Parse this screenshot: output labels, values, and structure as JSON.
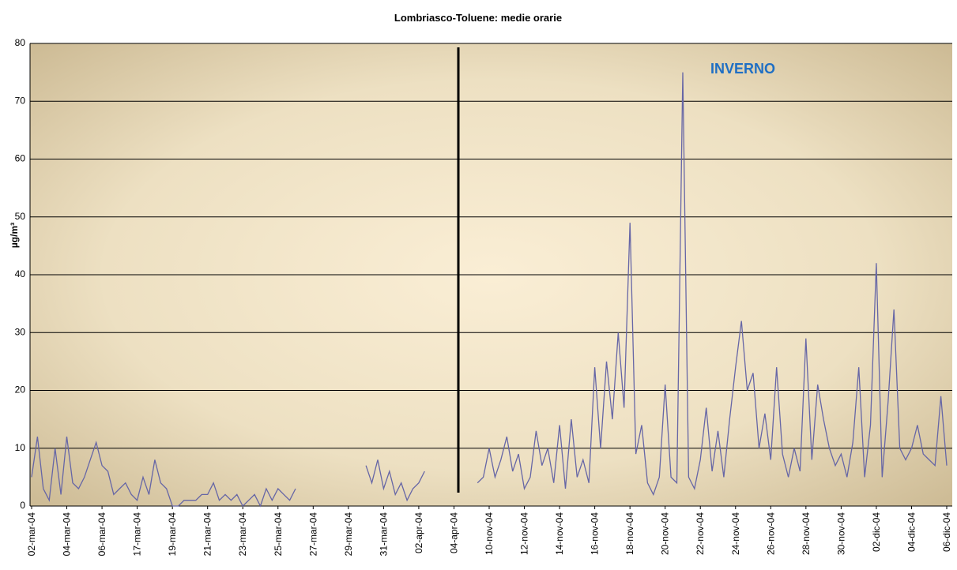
{
  "chart_data": {
    "type": "line",
    "title": "Lombriasco-Toluene: medie orarie",
    "y_label": "µg/m³",
    "annotation": "INVERNO",
    "categories": [
      "02-mar-04",
      null,
      null,
      null,
      null,
      null,
      "04-mar-04",
      null,
      null,
      null,
      null,
      null,
      "06-mar-04",
      null,
      null,
      null,
      null,
      null,
      "17-mar-04",
      null,
      null,
      null,
      null,
      null,
      "19-mar-04",
      null,
      null,
      null,
      null,
      null,
      "21-mar-04",
      null,
      null,
      null,
      null,
      null,
      "23-mar-04",
      null,
      null,
      null,
      null,
      null,
      "25-mar-04",
      null,
      null,
      null,
      null,
      null,
      "27-mar-04",
      null,
      null,
      null,
      null,
      null,
      "29-mar-04",
      null,
      null,
      null,
      null,
      null,
      "31-mar-04",
      null,
      null,
      null,
      null,
      null,
      "02-apr-04",
      null,
      null,
      null,
      null,
      null,
      "04-apr-04",
      null,
      null,
      null,
      null,
      null,
      "10-nov-04",
      null,
      null,
      null,
      null,
      null,
      "12-nov-04",
      null,
      null,
      null,
      null,
      null,
      "14-nov-04",
      null,
      null,
      null,
      null,
      null,
      "16-nov-04",
      null,
      null,
      null,
      null,
      null,
      "18-nov-04",
      null,
      null,
      null,
      null,
      null,
      "20-nov-04",
      null,
      null,
      null,
      null,
      null,
      "22-nov-04",
      null,
      null,
      null,
      null,
      null,
      "24-nov-04",
      null,
      null,
      null,
      null,
      null,
      "26-nov-04",
      null,
      null,
      null,
      null,
      null,
      "28-nov-04",
      null,
      null,
      null,
      null,
      null,
      "30-nov-04",
      null,
      null,
      null,
      null,
      null,
      "02-dic-04",
      null,
      null,
      null,
      null,
      null,
      "04-dic-04",
      null,
      null,
      null,
      null,
      null,
      "06-dic-04"
    ],
    "series": [
      {
        "name": "Toluene",
        "color": "#6666a6",
        "values": [
          5,
          12,
          3,
          1,
          10,
          2,
          12,
          4,
          3,
          5,
          8,
          11,
          7,
          6,
          2,
          3,
          4,
          2,
          1,
          5,
          2,
          8,
          4,
          3,
          0,
          0,
          1,
          1,
          1,
          2,
          2,
          4,
          1,
          2,
          1,
          2,
          0,
          1,
          2,
          0,
          3,
          1,
          3,
          2,
          1,
          3,
          null,
          null,
          null,
          null,
          null,
          null,
          null,
          null,
          null,
          null,
          null,
          7,
          4,
          8,
          3,
          6,
          2,
          4,
          1,
          3,
          4,
          6,
          null,
          null,
          null,
          null,
          null,
          null,
          null,
          null,
          4,
          5,
          10,
          5,
          8,
          12,
          6,
          9,
          3,
          5,
          13,
          7,
          10,
          4,
          14,
          3,
          15,
          5,
          8,
          4,
          24,
          10,
          25,
          15,
          30,
          17,
          49,
          9,
          14,
          4,
          2,
          5,
          21,
          5,
          4,
          75,
          5,
          3,
          8,
          17,
          6,
          13,
          5,
          15,
          24,
          32,
          20,
          23,
          10,
          16,
          8,
          24,
          9,
          5,
          10,
          6,
          29,
          8,
          21,
          15,
          10,
          7,
          9,
          5,
          11,
          24,
          5,
          14,
          42,
          5,
          18,
          34,
          10,
          8,
          10,
          14,
          9,
          8,
          7,
          19,
          7
        ]
      }
    ],
    "ylim": [
      0,
      80
    ],
    "yticks": [
      0,
      10,
      20,
      30,
      40,
      50,
      60,
      70,
      80
    ],
    "grid": true
  }
}
